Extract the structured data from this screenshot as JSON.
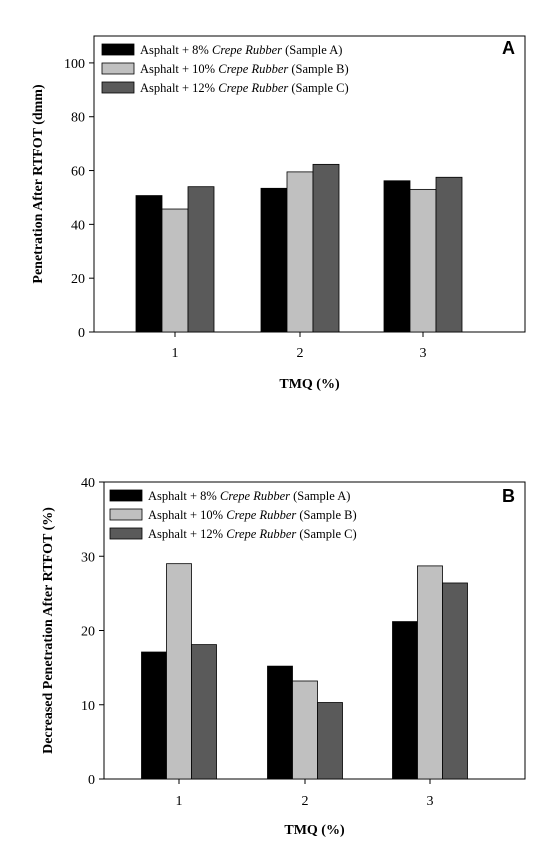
{
  "chart_data": [
    {
      "type": "bar",
      "panel_label": "A",
      "categories": [
        "1",
        "2",
        "3"
      ],
      "series": [
        {
          "name": "Asphalt + 8% Crepe Rubber (Sample A)",
          "legend_prefix": "Asphalt + 8% ",
          "legend_italic": "Crepe Rubber",
          "legend_suffix": " (Sample A)",
          "color": "#000000",
          "values": [
            50.7,
            53.4,
            56.2
          ]
        },
        {
          "name": "Asphalt + 10% Crepe Rubber (Sample B)",
          "legend_prefix": "Asphalt + 10% ",
          "legend_italic": "Crepe Rubber",
          "legend_suffix": " (Sample B)",
          "color": "#c0c0c0",
          "values": [
            45.7,
            59.5,
            53.0
          ]
        },
        {
          "name": "Asphalt + 12% Crepe Rubber (Sample C)",
          "legend_prefix": "Asphalt + 12% ",
          "legend_italic": "Crepe Rubber",
          "legend_suffix": " (Sample C)",
          "color": "#5a5a5a",
          "values": [
            54.0,
            62.3,
            57.5
          ]
        }
      ],
      "xlabel": "TMQ (%)",
      "ylabel": "Penetration After RTFOT (dmm)",
      "ylim": [
        0,
        110
      ],
      "yticks": [
        0,
        20,
        40,
        60,
        80,
        100
      ],
      "grid": false,
      "legend_position": "top-left"
    },
    {
      "type": "bar",
      "panel_label": "B",
      "categories": [
        "1",
        "2",
        "3"
      ],
      "series": [
        {
          "name": "Asphalt + 8% Crepe Rubber (Sample A)",
          "legend_prefix": "Asphalt + 8% ",
          "legend_italic": "Crepe Rubber",
          "legend_suffix": " (Sample A)",
          "color": "#000000",
          "values": [
            17.1,
            15.2,
            21.2
          ]
        },
        {
          "name": "Asphalt + 10% Crepe Rubber (Sample B)",
          "legend_prefix": "Asphalt + 10% ",
          "legend_italic": "Crepe Rubber",
          "legend_suffix": " (Sample B)",
          "color": "#c0c0c0",
          "values": [
            29.0,
            13.2,
            28.7
          ]
        },
        {
          "name": "Asphalt + 12% Crepe Rubber (Sample C)",
          "legend_prefix": "Asphalt + 12% ",
          "legend_italic": "Crepe Rubber",
          "legend_suffix": " (Sample C)",
          "color": "#5a5a5a",
          "values": [
            18.1,
            10.3,
            26.4
          ]
        }
      ],
      "xlabel": "TMQ (%)",
      "ylabel": "Decreased Penetration After RTFOT (%)",
      "ylim": [
        0,
        40
      ],
      "yticks": [
        0,
        10,
        20,
        30,
        40
      ],
      "grid": false,
      "legend_position": "top-left"
    }
  ]
}
